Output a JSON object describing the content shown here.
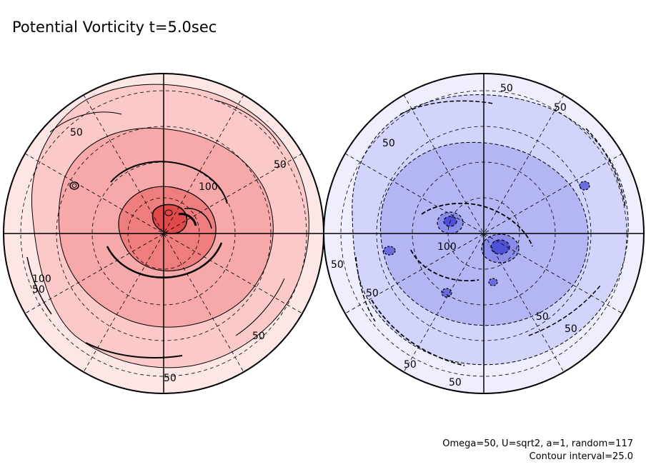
{
  "title": "Potential Vorticity  t=5.0sec",
  "footnote": {
    "params": "Omega=50, U=sqrt2, a=1, random=117",
    "contour": "Contour interval=25.0"
  },
  "chart_data": [
    {
      "type": "heatmap",
      "projection": "polar stereographic",
      "hemisphere": "positive",
      "colors": [
        "#fde6e6",
        "#fcc9c9",
        "#f7a9a9",
        "#ee7d7d",
        "#e04a4a"
      ],
      "levels": [
        50,
        100,
        150,
        200
      ],
      "contour_labels": [
        "50",
        "50",
        "100",
        "50",
        "50",
        "50",
        "100"
      ]
    },
    {
      "type": "heatmap",
      "projection": "polar stereographic",
      "hemisphere": "negative",
      "colors": [
        "#eeeefe",
        "#d2d4fb",
        "#b4b6f4",
        "#8a8cea",
        "#4f52d8"
      ],
      "levels": [
        -50,
        -100,
        -150,
        -200
      ],
      "contour_labels": [
        "50",
        "50",
        "50",
        "50",
        "100",
        "50",
        "50",
        "50",
        "50",
        "50"
      ]
    }
  ]
}
